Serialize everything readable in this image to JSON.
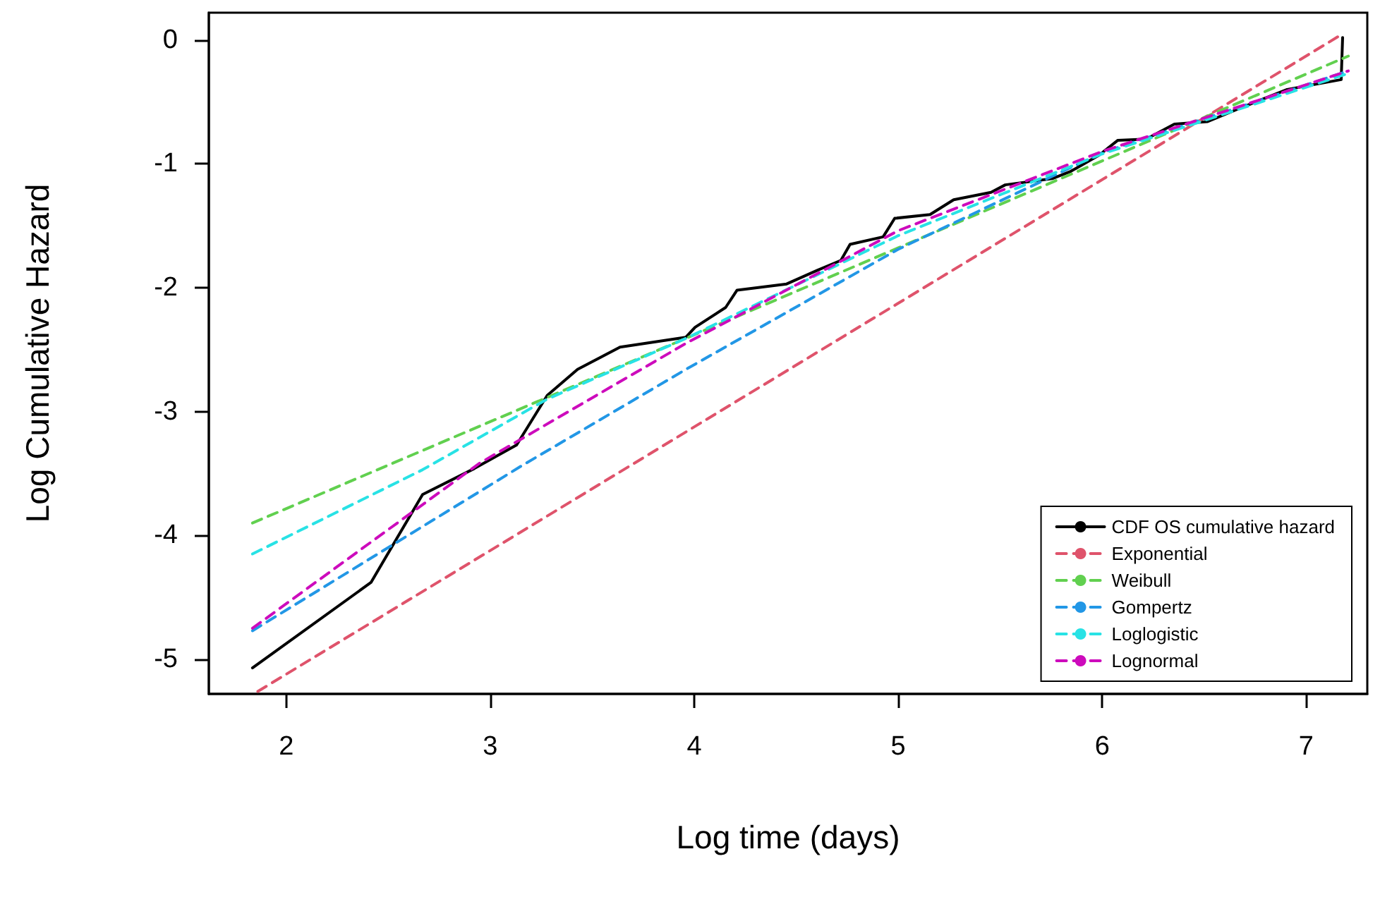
{
  "chart_data": {
    "type": "line",
    "xlabel": "Log time (days)",
    "ylabel": "Log Cumulative Hazard",
    "xlim": [
      1.62,
      7.3
    ],
    "ylim": [
      -5.28,
      0.22
    ],
    "xticks": [
      2,
      3,
      4,
      5,
      6,
      7
    ],
    "yticks": [
      -5,
      -4,
      -3,
      -2,
      -1,
      0
    ],
    "grid": false,
    "legend": "bottom right",
    "marker": "none",
    "series": [
      {
        "name": "CDF OS cumulative hazard",
        "color": "#000000",
        "line_style": "solid",
        "x": [
          1.834,
          2.415,
          2.668,
          2.922,
          3.129,
          3.279,
          3.428,
          3.636,
          3.959,
          4.004,
          4.154,
          4.21,
          4.453,
          4.603,
          4.719,
          4.764,
          4.926,
          4.983,
          5.156,
          5.272,
          5.455,
          5.525,
          5.755,
          5.847,
          5.985,
          6.077,
          6.216,
          6.354,
          6.515,
          6.677,
          6.907,
          7.172,
          7.179
        ],
        "values": [
          -5.07,
          -4.38,
          -3.67,
          -3.46,
          -3.27,
          -2.87,
          -2.66,
          -2.48,
          -2.4,
          -2.32,
          -2.16,
          -2.02,
          -1.97,
          -1.86,
          -1.78,
          -1.65,
          -1.59,
          -1.44,
          -1.41,
          -1.29,
          -1.23,
          -1.17,
          -1.12,
          -1.06,
          -0.93,
          -0.81,
          -0.8,
          -0.68,
          -0.66,
          -0.55,
          -0.4,
          -0.32,
          0.02
        ]
      },
      {
        "name": "Exponential",
        "color": "#df536b",
        "line_style": "dashed",
        "x": [
          1.86,
          7.16
        ],
        "values": [
          -5.26,
          0.03
        ]
      },
      {
        "name": "Weibull",
        "color": "#61d04f",
        "line_style": "dashed",
        "x": [
          1.834,
          7.207
        ],
        "values": [
          -3.9,
          -0.13
        ]
      },
      {
        "name": "Gompertz",
        "color": "#2297e6",
        "line_style": "dashed",
        "x": [
          1.834,
          3.152,
          3.959,
          5,
          6,
          7.207
        ],
        "values": [
          -4.77,
          -3.44,
          -2.66,
          -1.69,
          -0.91,
          -0.25
        ]
      },
      {
        "name": "Loglogistic",
        "color": "#28e2e5",
        "line_style": "dashed",
        "x": [
          1.834,
          2.668,
          3.279,
          3.959,
          5,
          6,
          7.207
        ],
        "values": [
          -4.15,
          -3.47,
          -2.9,
          -2.41,
          -1.58,
          -0.92,
          -0.27
        ]
      },
      {
        "name": "Lognormal",
        "color": "#cd0bbc",
        "line_style": "dashed",
        "x": [
          1.834,
          2.945,
          3.959,
          5,
          6,
          7.207
        ],
        "values": [
          -4.75,
          -3.42,
          -2.45,
          -1.54,
          -0.9,
          -0.25
        ]
      }
    ]
  }
}
